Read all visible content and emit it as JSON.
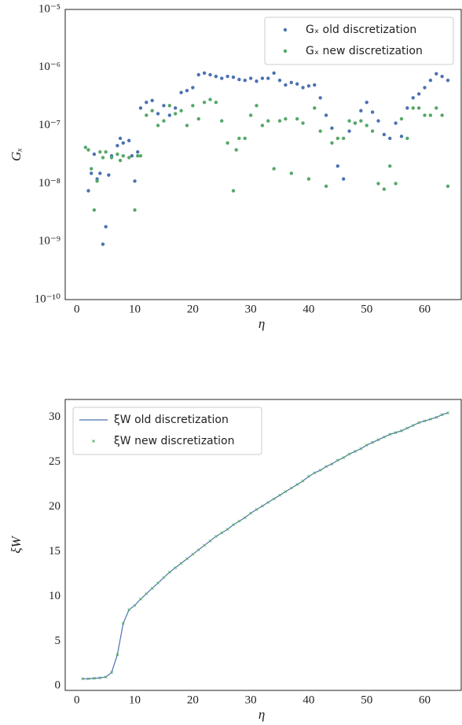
{
  "chart_data": [
    {
      "type": "scatter",
      "log_y": true,
      "xlabel": "η",
      "ylabel": "Gₓ",
      "legend": "upper right",
      "xlim": [
        -2,
        66.3
      ],
      "xticks": [
        0,
        10,
        20,
        30,
        40,
        50,
        60
      ],
      "ylim": [
        1e-10,
        1e-05
      ],
      "yticks": [
        {
          "value": 1e-10,
          "label": "10⁻¹⁰"
        },
        {
          "value": 1e-09,
          "label": "10⁻⁹"
        },
        {
          "value": 1e-08,
          "label": "10⁻⁸"
        },
        {
          "value": 1e-07,
          "label": "10⁻⁷"
        },
        {
          "value": 1e-06,
          "label": "10⁻⁶"
        },
        {
          "value": 1e-05,
          "label": "10⁻⁵"
        }
      ],
      "series": [
        {
          "name": "Gₓ old discretization",
          "color": "#4c72b0",
          "x": [
            2,
            2.5,
            3,
            3.5,
            4,
            4.5,
            5,
            5.5,
            6,
            7,
            7.5,
            8,
            9,
            9.5,
            10,
            10.5,
            11,
            12,
            13,
            14,
            15,
            16,
            17,
            18,
            19,
            20,
            21,
            22,
            23,
            24,
            25,
            26,
            27,
            28,
            29,
            30,
            31,
            32,
            33,
            34,
            35,
            36,
            37,
            38,
            39,
            40,
            41,
            42,
            43,
            44,
            45,
            46,
            47,
            48,
            49,
            50,
            51,
            52,
            53,
            54,
            55,
            56,
            57,
            58,
            59,
            60,
            61,
            62,
            63,
            64
          ],
          "values": [
            7.5e-09,
            1.5e-08,
            3.2e-08,
            1.2e-08,
            1.5e-08,
            9e-10,
            1.8e-09,
            1.4e-08,
            3e-08,
            4.5e-08,
            6e-08,
            5e-08,
            5.5e-08,
            3e-08,
            1.1e-08,
            3.5e-08,
            2e-07,
            2.5e-07,
            2.7e-07,
            1.6e-07,
            2.2e-07,
            1.5e-07,
            2e-07,
            3.7e-07,
            4e-07,
            4.5e-07,
            7.5e-07,
            8e-07,
            7.5e-07,
            7e-07,
            6.5e-07,
            7e-07,
            6.8e-07,
            6.2e-07,
            6e-07,
            6.5e-07,
            5.8e-07,
            6.5e-07,
            6.5e-07,
            8e-07,
            6e-07,
            5e-07,
            5.5e-07,
            5.2e-07,
            4.5e-07,
            4.8e-07,
            5e-07,
            3e-07,
            1.5e-07,
            9e-08,
            2e-08,
            1.2e-08,
            8e-08,
            1.1e-07,
            1.8e-07,
            2.5e-07,
            1.7e-07,
            1.2e-07,
            7e-08,
            6e-08,
            1.1e-07,
            6.5e-08,
            2e-07,
            3e-07,
            3.5e-07,
            4.5e-07,
            6e-07,
            7.8e-07,
            7e-07,
            6e-07
          ]
        },
        {
          "name": "Gₓ new discretization",
          "color": "#55a868",
          "x": [
            1.5,
            2,
            2.5,
            3,
            3.5,
            4,
            4.5,
            5,
            6,
            7,
            7.5,
            8,
            9,
            10,
            10.5,
            11,
            12,
            13,
            14,
            15,
            16,
            17,
            18,
            19,
            20,
            21,
            22,
            23,
            24,
            25,
            26,
            27,
            27.5,
            28,
            29,
            30,
            31,
            32,
            33,
            34,
            35,
            36,
            37,
            38,
            39,
            40,
            41,
            42,
            43,
            44,
            45,
            46,
            47,
            48,
            49,
            50,
            51,
            52,
            53,
            54,
            55,
            56,
            57,
            58,
            59,
            60,
            61,
            62,
            63,
            64
          ],
          "values": [
            4.2e-08,
            3.8e-08,
            1.8e-08,
            3.5e-09,
            1.1e-08,
            3.5e-08,
            2.8e-08,
            3.5e-08,
            2.8e-08,
            3.2e-08,
            2.5e-08,
            3e-08,
            2.8e-08,
            3.5e-09,
            3e-08,
            3e-08,
            1.5e-07,
            1.8e-07,
            1e-07,
            1.2e-07,
            2.2e-07,
            1.6e-07,
            1.8e-07,
            1e-07,
            2.2e-07,
            1.3e-07,
            2.5e-07,
            2.8e-07,
            2.5e-07,
            1.2e-07,
            5e-08,
            7.5e-09,
            3.8e-08,
            6e-08,
            6e-08,
            1.5e-07,
            2.2e-07,
            1e-07,
            1.2e-07,
            1.8e-08,
            1.2e-07,
            1.3e-07,
            1.5e-08,
            1.3e-07,
            1.1e-07,
            1.2e-08,
            2e-07,
            8e-08,
            9e-09,
            5e-08,
            6e-08,
            6e-08,
            1.2e-07,
            1.1e-07,
            1.2e-07,
            1e-07,
            8e-08,
            1e-08,
            8e-09,
            2e-08,
            1e-08,
            1.3e-07,
            6e-08,
            2e-07,
            2e-07,
            1.5e-07,
            1.5e-07,
            2e-07,
            1.5e-07,
            9e-09
          ]
        }
      ]
    },
    {
      "type": "line",
      "log_y": false,
      "xlabel": "η",
      "ylabel": "ξW",
      "legend": "upper left",
      "xlim": [
        -2,
        66.3
      ],
      "xticks": [
        0,
        10,
        20,
        30,
        40,
        50,
        60
      ],
      "ylim": [
        -0.5,
        32
      ],
      "yticks": [
        0,
        5,
        10,
        15,
        20,
        25,
        30
      ],
      "series": [
        {
          "name": "ξW old discretization",
          "color": "#4c72b0",
          "style": "line",
          "x": [
            1,
            2,
            3,
            4,
            5,
            6,
            7,
            8,
            9,
            10,
            11,
            12,
            13,
            14,
            15,
            16,
            17,
            18,
            19,
            20,
            21,
            22,
            23,
            24,
            25,
            26,
            27,
            28,
            29,
            30,
            31,
            32,
            33,
            34,
            35,
            36,
            37,
            38,
            39,
            40,
            41,
            42,
            43,
            44,
            45,
            46,
            47,
            48,
            49,
            50,
            51,
            52,
            53,
            54,
            55,
            56,
            57,
            58,
            59,
            60,
            61,
            62,
            63,
            64
          ],
          "values": [
            0.8,
            0.8,
            0.85,
            0.9,
            1.0,
            1.5,
            3.5,
            7.0,
            8.5,
            9.0,
            9.7,
            10.3,
            10.9,
            11.5,
            12.1,
            12.7,
            13.2,
            13.7,
            14.2,
            14.7,
            15.2,
            15.7,
            16.2,
            16.7,
            17.1,
            17.5,
            18.0,
            18.4,
            18.8,
            19.3,
            19.7,
            20.1,
            20.5,
            20.9,
            21.3,
            21.7,
            22.1,
            22.5,
            22.9,
            23.4,
            23.8,
            24.1,
            24.5,
            24.8,
            25.2,
            25.5,
            25.9,
            26.2,
            26.5,
            26.9,
            27.2,
            27.5,
            27.8,
            28.1,
            28.3,
            28.5,
            28.8,
            29.1,
            29.4,
            29.6,
            29.8,
            30.0,
            30.3,
            30.5
          ]
        },
        {
          "name": "ξW new discretization",
          "color": "#55a868",
          "style": "marker",
          "x": [
            1,
            2,
            3,
            4,
            5,
            6,
            7,
            8,
            9,
            10,
            11,
            12,
            13,
            14,
            15,
            16,
            17,
            18,
            19,
            20,
            21,
            22,
            23,
            24,
            25,
            26,
            27,
            28,
            29,
            30,
            31,
            32,
            33,
            34,
            35,
            36,
            37,
            38,
            39,
            40,
            41,
            42,
            43,
            44,
            45,
            46,
            47,
            48,
            49,
            50,
            51,
            52,
            53,
            54,
            55,
            56,
            57,
            58,
            59,
            60,
            61,
            62,
            63,
            64
          ],
          "values": [
            0.8,
            0.8,
            0.85,
            0.9,
            1.0,
            1.5,
            3.5,
            7.0,
            8.5,
            9.0,
            9.7,
            10.3,
            10.9,
            11.5,
            12.1,
            12.7,
            13.2,
            13.7,
            14.2,
            14.7,
            15.2,
            15.7,
            16.2,
            16.7,
            17.1,
            17.5,
            18.0,
            18.4,
            18.8,
            19.3,
            19.7,
            20.1,
            20.5,
            20.9,
            21.3,
            21.7,
            22.1,
            22.5,
            22.9,
            23.4,
            23.8,
            24.1,
            24.5,
            24.8,
            25.2,
            25.5,
            25.9,
            26.2,
            26.5,
            26.9,
            27.2,
            27.5,
            27.8,
            28.1,
            28.3,
            28.5,
            28.8,
            29.1,
            29.4,
            29.6,
            29.8,
            30.0,
            30.3,
            30.5
          ]
        }
      ]
    }
  ]
}
